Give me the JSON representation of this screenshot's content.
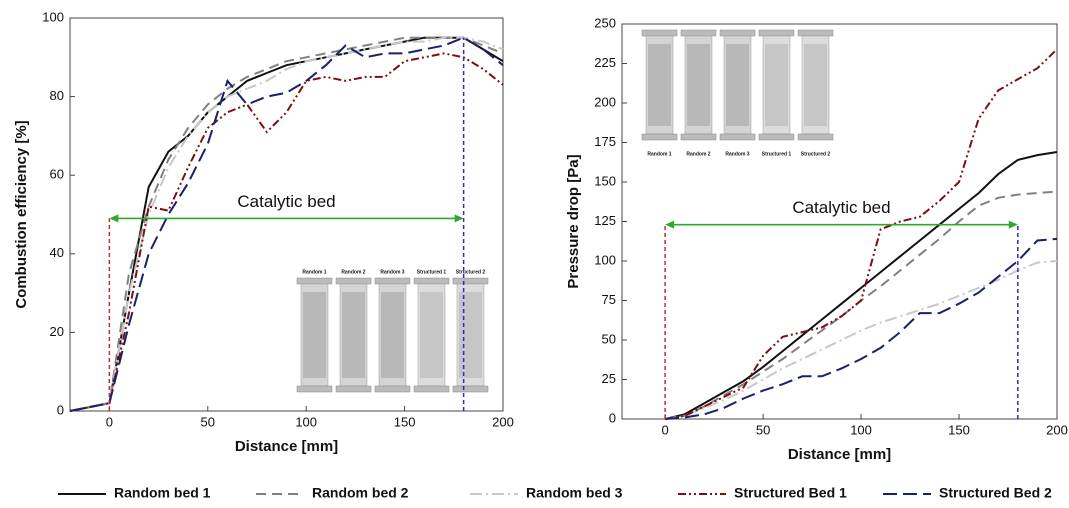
{
  "chart_data": [
    {
      "type": "line",
      "xlabel": "Distance [mm]",
      "ylabel": "Combustion efficiency [%]",
      "x": [
        -20,
        0,
        10,
        20,
        30,
        40,
        50,
        60,
        70,
        80,
        90,
        100,
        110,
        120,
        130,
        140,
        150,
        160,
        170,
        180,
        190,
        200
      ],
      "series": [
        {
          "name": "Random bed 1",
          "color": "#111111",
          "dash": "none",
          "values": [
            0,
            2,
            30,
            57,
            66,
            70,
            76,
            80,
            84,
            86,
            88,
            89,
            90,
            91,
            92,
            93,
            94,
            95,
            95,
            95,
            92,
            89
          ]
        },
        {
          "name": "Random bed 2",
          "color": "#808080",
          "dash": "10,6",
          "values": [
            0,
            2,
            35,
            52,
            64,
            72,
            78,
            82,
            85,
            87,
            89,
            90,
            91,
            92,
            93,
            94,
            95,
            95,
            95,
            95,
            93,
            91
          ]
        },
        {
          "name": "Random bed 3",
          "color": "#c8c8c8",
          "dash": "12,4,2,4",
          "values": [
            0,
            2,
            30,
            50,
            62,
            70,
            76,
            80,
            82,
            84,
            87,
            89,
            90,
            91,
            92,
            93,
            94,
            94,
            95,
            95,
            94,
            92
          ]
        },
        {
          "name": "Structured Bed 1",
          "color": "#7a1010",
          "dash": "8,3,2,3,2,3",
          "values": [
            0,
            2,
            25,
            52,
            51,
            62,
            72,
            76,
            78,
            71,
            76,
            84,
            85,
            84,
            85,
            85,
            89,
            90,
            91,
            90,
            87,
            83
          ]
        },
        {
          "name": "Structured Bed 2",
          "color": "#1a1f6e",
          "dash": "14,6",
          "values": [
            0,
            2,
            22,
            40,
            50,
            58,
            68,
            84,
            78,
            80,
            81,
            84,
            88,
            93,
            90,
            91,
            91,
            92,
            93,
            95,
            92,
            88
          ]
        }
      ],
      "xlim": [
        -20,
        200
      ],
      "ylim": [
        0,
        100
      ],
      "xticks": [
        0,
        50,
        100,
        150,
        200
      ],
      "yticks": [
        0,
        20,
        40,
        60,
        80,
        100
      ],
      "annotation": {
        "text": "Catalytic bed",
        "x": [
          0,
          180
        ],
        "y": 49
      },
      "inset_labels": [
        "Random 1",
        "Random 2",
        "Random 3",
        "Structured 1",
        "Structured 2"
      ]
    },
    {
      "type": "line",
      "xlabel": "Distance [mm]",
      "ylabel": "Pressure drop [Pa]",
      "x": [
        0,
        10,
        20,
        30,
        40,
        50,
        60,
        70,
        80,
        90,
        100,
        110,
        120,
        130,
        140,
        150,
        160,
        170,
        180,
        190,
        200
      ],
      "series": [
        {
          "color": "#111111",
          "dash": "none",
          "values": [
            0,
            3,
            10,
            17,
            24,
            33,
            43,
            53,
            63,
            73,
            83,
            93,
            103,
            113,
            123,
            133,
            143,
            155,
            164,
            167,
            169
          ]
        },
        {
          "color": "#808080",
          "dash": "10,6",
          "values": [
            0,
            2,
            8,
            15,
            22,
            30,
            38,
            47,
            56,
            65,
            75,
            84,
            94,
            104,
            114,
            125,
            135,
            140,
            142,
            143,
            144
          ]
        },
        {
          "color": "#c8c8c8",
          "dash": "12,4,2,4",
          "values": [
            0,
            2,
            7,
            12,
            18,
            25,
            32,
            38,
            44,
            50,
            56,
            61,
            65,
            69,
            73,
            78,
            83,
            88,
            94,
            99,
            100
          ]
        },
        {
          "color": "#7a1010",
          "dash": "8,3,2,3,2,3",
          "values": [
            0,
            2,
            8,
            14,
            20,
            40,
            52,
            55,
            58,
            65,
            75,
            120,
            125,
            128,
            138,
            150,
            190,
            208,
            215,
            222,
            234
          ]
        },
        {
          "color": "#1a1f6e",
          "dash": "14,6",
          "values": [
            0,
            1,
            3,
            7,
            13,
            18,
            22,
            27,
            27,
            32,
            38,
            45,
            55,
            67,
            67,
            73,
            80,
            90,
            100,
            113,
            114
          ]
        }
      ],
      "xlim": [
        -22,
        200
      ],
      "ylim": [
        0,
        250
      ],
      "xticks": [
        0,
        50,
        100,
        150,
        200
      ],
      "yticks": [
        0,
        25,
        50,
        75,
        100,
        125,
        150,
        175,
        200,
        225,
        250
      ],
      "annotation": {
        "text": "Catalytic bed",
        "x": [
          0,
          180
        ],
        "y": 123
      },
      "inset_labels": [
        "Random 1",
        "Random 2",
        "Random 3",
        "Structured 1",
        "Structured 2"
      ]
    }
  ]
}
